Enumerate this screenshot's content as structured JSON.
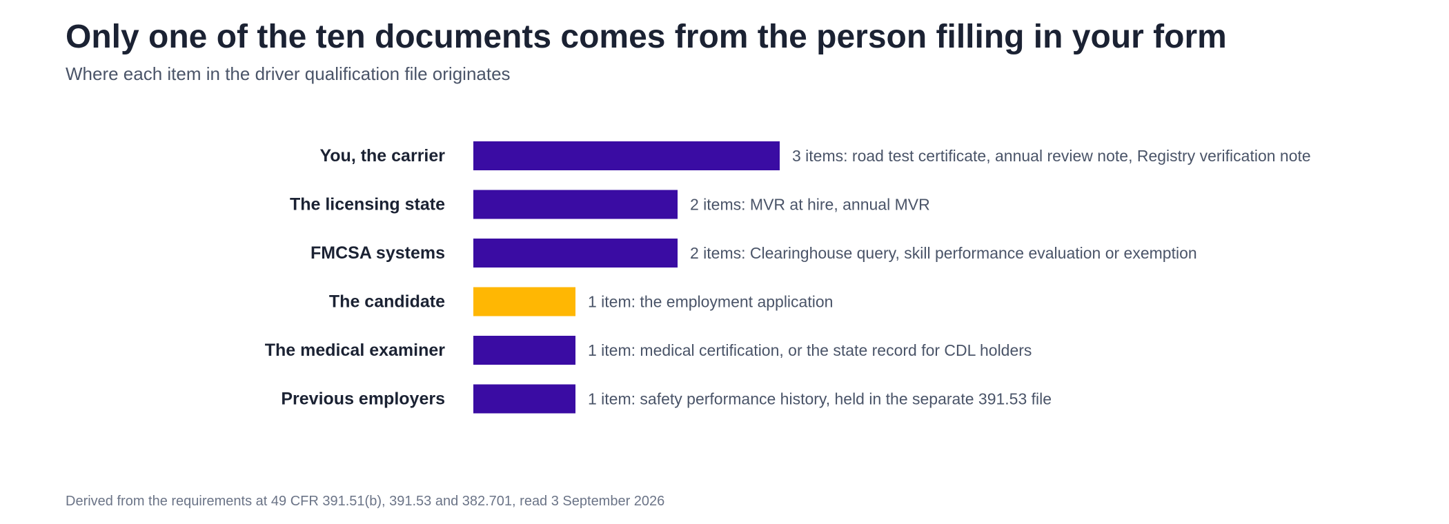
{
  "header": {
    "title": "Only one of the ten documents comes from the person filling in your form",
    "subtitle": "Where each item in the driver qualification file originates"
  },
  "footer": {
    "source": "Derived from the requirements at 49 CFR 391.51(b), 391.53 and 382.701, read 3 September 2026"
  },
  "colors": {
    "default_bar": "#3a0ca3",
    "highlight_bar": "#ffb703"
  },
  "chart_data": {
    "type": "bar",
    "orientation": "horizontal",
    "categories": [
      "You, the carrier",
      "The licensing state",
      "FMCSA systems",
      "The candidate",
      "The medical examiner",
      "Previous employers"
    ],
    "values": [
      3,
      2,
      2,
      1,
      1,
      1
    ],
    "highlighted": [
      false,
      false,
      false,
      true,
      false,
      false
    ],
    "data_labels": [
      "3 items: road test certificate, annual review note, Registry verification note",
      "2 items: MVR at hire, annual MVR",
      "2 items: Clearinghouse query, skill performance evaluation or exemption",
      "1 item: the employment application",
      "1 item: medical certification, or the state record for CDL holders",
      "1 item: safety performance history, held in the separate 391.53 file"
    ],
    "title": "Only one of the ten documents comes from the person filling in your form",
    "subtitle": "Where each item in the driver qualification file originates",
    "xlabel": "",
    "ylabel": "",
    "grid": false,
    "legend": "none"
  }
}
